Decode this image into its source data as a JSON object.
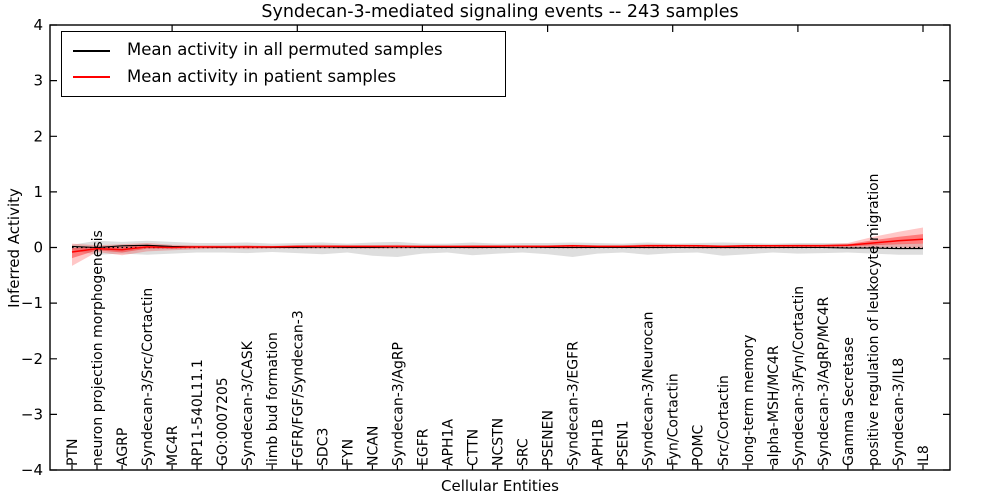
{
  "chart_data": {
    "type": "line",
    "title": "Syndecan-3-mediated signaling events -- 243 samples",
    "xlabel": "Cellular Entities",
    "ylabel": "Inferred Activity",
    "ylim": [
      -4,
      4
    ],
    "yticks": [
      4,
      3,
      2,
      1,
      0,
      -1,
      -2,
      -3,
      -4
    ],
    "ytick_labels": [
      "4",
      "3",
      "2",
      "1",
      "0",
      "−1",
      "−2",
      "−3",
      "−4"
    ],
    "grid": false,
    "zero_line": {
      "y": 0,
      "style": "dotted",
      "color": "#000000"
    },
    "legend": {
      "position": "upper left",
      "entries": [
        {
          "label": "Mean activity in all permuted samples",
          "color": "#000000"
        },
        {
          "label": "Mean activity in patient samples",
          "color": "#ff0000"
        }
      ]
    },
    "categories": [
      "PTN",
      "neuron projection morphogenesis",
      "AGRP",
      "Syndecan-3/Src/Cortactin",
      "MC4R",
      "RP11-540L11.1",
      "GO:0007205",
      "Syndecan-3/CASK",
      "limb bud formation",
      "FGFR/FGF/Syndecan-3",
      "SDC3",
      "FYN",
      "NCAN",
      "Syndecan-3/AgRP",
      "EGFR",
      "APH1A",
      "CTTN",
      "NCSTN",
      "SRC",
      "PSENEN",
      "Syndecan-3/EGFR",
      "APH1B",
      "PSEN1",
      "Syndecan-3/Neurocan",
      "Fyn/Cortactin",
      "POMC",
      "Src/Cortactin",
      "long-term memory",
      "alpha-MSH/MC4R",
      "Syndecan-3/Fyn/Cortactin",
      "Syndecan-3/AgRP/MC4R",
      "Gamma Secretase",
      "positive regulation of leukocyte migration",
      "Syndecan-3/IL8",
      "IL8"
    ],
    "series": [
      {
        "name": "Mean activity in all permuted samples",
        "color": "#000000",
        "width": 1.1,
        "values": [
          0.02,
          0.0,
          0.03,
          0.04,
          0.02,
          0.01,
          0.0,
          0.01,
          0.0,
          0.0,
          0.01,
          0.0,
          0.0,
          0.01,
          0.0,
          0.0,
          0.0,
          0.0,
          0.01,
          0.0,
          0.0,
          0.0,
          0.0,
          0.0,
          0.0,
          0.0,
          0.0,
          0.0,
          0.0,
          0.0,
          0.0,
          -0.01,
          -0.01,
          -0.02,
          -0.02
        ]
      },
      {
        "name": "Mean activity in patient samples",
        "color": "#ff0000",
        "width": 1.5,
        "values": [
          -0.08,
          -0.02,
          -0.04,
          0.01,
          0.0,
          0.01,
          0.01,
          0.01,
          0.01,
          0.02,
          0.02,
          0.02,
          0.02,
          0.02,
          0.02,
          0.02,
          0.02,
          0.02,
          0.02,
          0.02,
          0.03,
          0.02,
          0.02,
          0.03,
          0.03,
          0.03,
          0.02,
          0.03,
          0.03,
          0.03,
          0.03,
          0.04,
          0.08,
          0.12,
          0.15
        ]
      }
    ],
    "bands": [
      {
        "name": "permuted-samples-range",
        "color": "#000000",
        "opacity": 0.13,
        "upper": [
          0.05,
          0.12,
          0.1,
          0.12,
          0.1,
          0.08,
          0.08,
          0.09,
          0.07,
          0.08,
          0.09,
          0.07,
          0.09,
          0.1,
          0.07,
          0.07,
          0.09,
          0.07,
          0.08,
          0.08,
          0.09,
          0.08,
          0.07,
          0.09,
          0.07,
          0.08,
          0.09,
          0.08,
          0.07,
          0.08,
          0.08,
          0.07,
          0.07,
          0.07,
          0.07
        ],
        "lower": [
          -0.05,
          -0.13,
          -0.11,
          -0.13,
          -0.11,
          -0.09,
          -0.09,
          -0.1,
          -0.08,
          -0.1,
          -0.12,
          -0.09,
          -0.15,
          -0.17,
          -0.11,
          -0.09,
          -0.14,
          -0.11,
          -0.09,
          -0.12,
          -0.17,
          -0.11,
          -0.09,
          -0.13,
          -0.1,
          -0.09,
          -0.15,
          -0.12,
          -0.09,
          -0.11,
          -0.1,
          -0.09,
          -0.11,
          -0.13,
          -0.13
        ]
      },
      {
        "name": "patient-samples-range-outer",
        "color": "#ff0000",
        "opacity": 0.22,
        "upper": [
          0.07,
          0.04,
          0.06,
          0.08,
          0.05,
          0.04,
          0.04,
          0.04,
          0.03,
          0.04,
          0.05,
          0.04,
          0.04,
          0.05,
          0.03,
          0.03,
          0.04,
          0.04,
          0.04,
          0.04,
          0.05,
          0.04,
          0.04,
          0.06,
          0.06,
          0.05,
          0.04,
          0.05,
          0.05,
          0.06,
          0.06,
          0.08,
          0.19,
          0.28,
          0.36
        ],
        "lower": [
          -0.33,
          -0.08,
          -0.14,
          -0.07,
          -0.05,
          -0.03,
          -0.02,
          -0.03,
          -0.02,
          -0.02,
          -0.02,
          -0.02,
          -0.02,
          -0.02,
          -0.01,
          -0.01,
          -0.02,
          -0.01,
          -0.01,
          -0.01,
          -0.02,
          -0.01,
          -0.01,
          -0.02,
          -0.01,
          -0.02,
          -0.02,
          -0.02,
          -0.02,
          -0.01,
          -0.01,
          -0.01,
          0.0,
          0.0,
          -0.02
        ]
      },
      {
        "name": "patient-samples-range-inner",
        "color": "#ff0000",
        "opacity": 0.38,
        "upper": [
          -0.01,
          0.01,
          0.01,
          0.05,
          0.02,
          0.02,
          0.02,
          0.03,
          0.02,
          0.03,
          0.03,
          0.03,
          0.03,
          0.03,
          0.02,
          0.02,
          0.03,
          0.03,
          0.03,
          0.03,
          0.04,
          0.03,
          0.03,
          0.04,
          0.04,
          0.04,
          0.03,
          0.04,
          0.04,
          0.04,
          0.04,
          0.06,
          0.13,
          0.19,
          0.24
        ],
        "lower": [
          -0.19,
          -0.05,
          -0.09,
          -0.02,
          -0.02,
          -0.01,
          0.0,
          -0.01,
          0.0,
          0.0,
          0.0,
          0.0,
          0.0,
          0.01,
          0.0,
          0.0,
          0.0,
          0.01,
          0.01,
          0.01,
          0.01,
          0.01,
          0.01,
          0.01,
          0.01,
          0.01,
          0.01,
          0.01,
          0.01,
          0.01,
          0.01,
          0.02,
          0.04,
          0.06,
          0.07
        ]
      }
    ],
    "top_tick_indices": [
      4,
      9,
      14,
      19,
      24,
      29,
      34
    ]
  }
}
